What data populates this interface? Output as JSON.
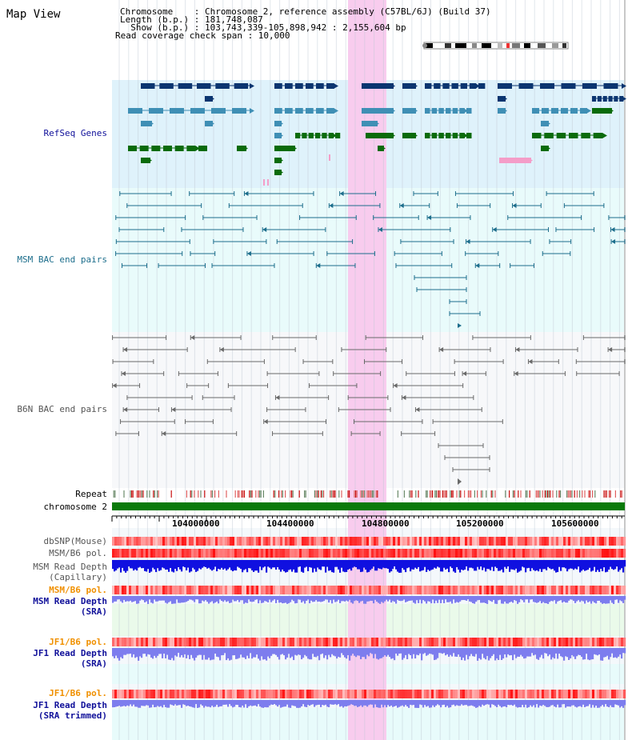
{
  "header": {
    "view_title": "Map View",
    "chromosome_line": "Chromosome    : Chromosome 2, reference assembly (C57BL/6J) (Build 37)",
    "length_line": "Length (b.p.) : 181,748,087",
    "show_line": "  Show (b.p.) : 103,743,339-105,898,942 : 2,155,604 bp",
    "coverage_line": "Read coverage check span : 10,000"
  },
  "tracks": {
    "refseq": "RefSeq Genes",
    "msm_bac": "MSM BAC end pairs",
    "b6n_bac": "B6N BAC end pairs",
    "repeat": "Repeat",
    "chromosome": "chromosome 2",
    "dbsnp": "dbSNP(Mouse)",
    "msm_b6_pol": "MSM/B6 pol.",
    "msm_depth_cap_1": "MSM Read Depth",
    "msm_depth_cap_2": "(Capillary)",
    "msm_b6_pol_2": "MSM/B6 pol.",
    "msm_depth_sra_1": "MSM Read Depth",
    "msm_depth_sra_2": "(SRA)",
    "jf1_b6_pol": "JF1/B6 pol.",
    "jf1_depth_sra_1": "JF1 Read Depth",
    "jf1_depth_sra_2": "(SRA)",
    "jf1_b6_pol_2": "JF1/B6 pol.",
    "jf1_depth_trim_1": "JF1 Read Depth",
    "jf1_depth_trim_2": "(SRA trimmed)"
  },
  "ruler": {
    "ticks": [
      "104000000",
      "104400000",
      "104800000",
      "105200000",
      "105600000"
    ]
  },
  "colors": {
    "refseq_bg": "#dff2fb",
    "msm_bg": "#e9fbfb",
    "b6n_bg": "#f7f8fa",
    "highlight": "#f8ccee",
    "gene_dark": "#0b3570",
    "gene_mid": "#3f8fb5",
    "gene_green": "#0a6b0a",
    "msm_pair": "#1d6e8c",
    "b6n_pair": "#6a6a6a",
    "chromosome_bar": "#0a7a0a",
    "depth_blue": "#1010e0",
    "depth_light_blue": "#7d7dee",
    "pol_red": "#ee3333",
    "label_blue": "#11119a",
    "label_orange": "#f09000",
    "label_teal": "#1d6e8c"
  }
}
